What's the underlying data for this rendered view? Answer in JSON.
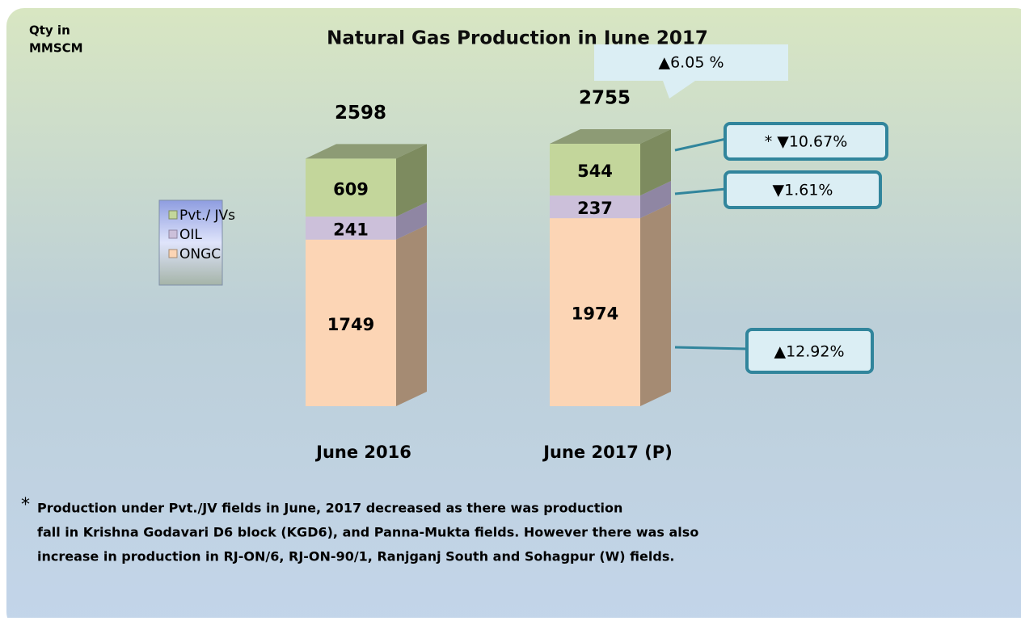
{
  "chart_data": {
    "type": "bar",
    "stacked": true,
    "title": "Natural Gas Production in June 2017",
    "y_label": [
      "Qty in",
      "MMSCM"
    ],
    "categories": [
      "June 2016",
      "June 2017 (P)"
    ],
    "series": [
      {
        "name": "ONGC",
        "color": "#fcd5b5",
        "side_color": "#a58b73",
        "values": [
          1749,
          1974
        ]
      },
      {
        "name": "OIL",
        "color": "#ccc0da",
        "side_color": "#8f86a3",
        "values": [
          241,
          237
        ]
      },
      {
        "name": "Pvt./ JVs",
        "color": "#c3d69b",
        "side_color": "#7d8b5f",
        "values": [
          609,
          544
        ]
      }
    ],
    "totals": [
      2598,
      2755
    ],
    "annotations": [
      "▲6.05 %",
      "* ▼10.67%",
      "▼1.61%",
      "▲12.92%"
    ],
    "footnote": [
      "*",
      "Production under Pvt./JV fields in June, 2017 decreased  as there was production",
      "fall in Krishna Godavari D6 block (KGD6), and Panna-Mukta fields. However there was also",
      "increase in production in RJ-ON/6, RJ-ON-90/1, Ranjganj South and Sohagpur (W) fields."
    ]
  }
}
